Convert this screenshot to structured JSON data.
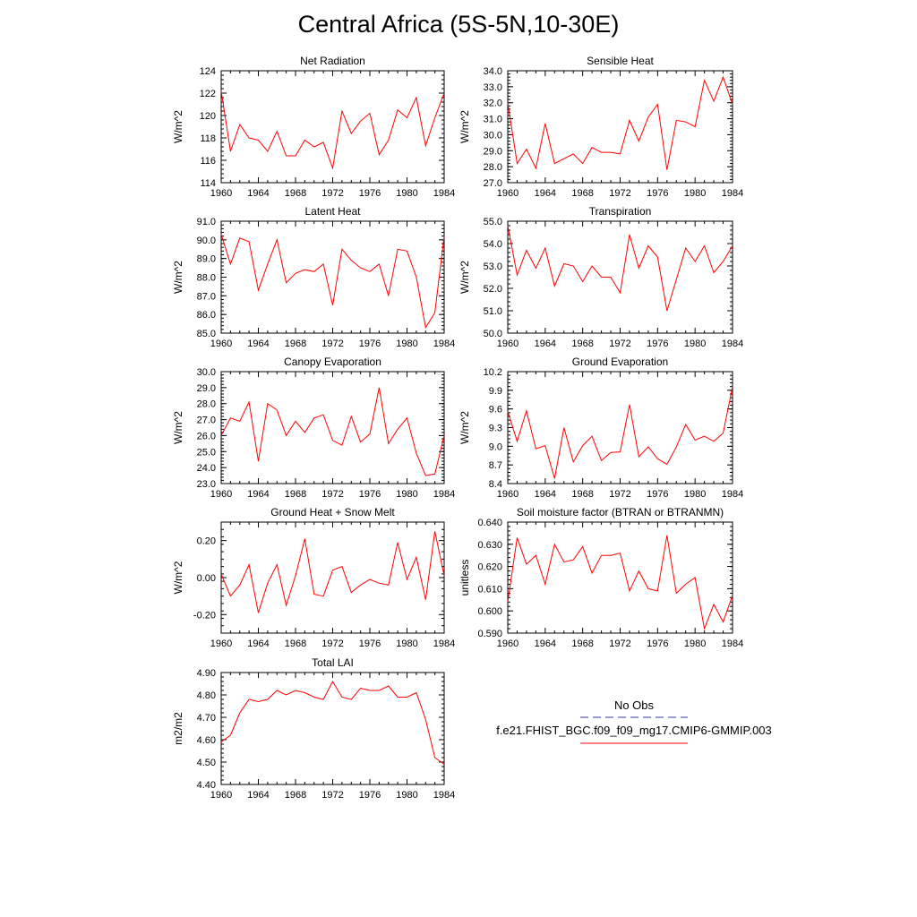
{
  "page_title": "Central Africa (5S-5N,10-30E)",
  "legend": {
    "obs_label": "No Obs",
    "model_label": "f.e21.FHIST_BGC.f09_f09_mg17.CMIP6-GMMIP.003",
    "obs_color": "#3333aa",
    "model_color": "#ff0000"
  },
  "chart_data": [
    {
      "type": "line",
      "title": "Net Radiation",
      "ylabel": "W/m^2",
      "xlim": [
        1960,
        1984
      ],
      "x_ticks": [
        "1960",
        "1964",
        "1968",
        "1972",
        "1976",
        "1980",
        "1984"
      ],
      "ylim": [
        114,
        124
      ],
      "y_ticks": [
        "114",
        "116",
        "118",
        "120",
        "122",
        "124"
      ],
      "x": [
        1960,
        1961,
        1962,
        1963,
        1964,
        1965,
        1966,
        1967,
        1968,
        1969,
        1970,
        1971,
        1972,
        1973,
        1974,
        1975,
        1976,
        1977,
        1978,
        1979,
        1980,
        1981,
        1982,
        1983,
        1984
      ],
      "series": [
        {
          "color": "#ff0000",
          "values": [
            122.2,
            116.8,
            119.2,
            118.0,
            117.8,
            116.8,
            118.6,
            116.4,
            116.4,
            117.8,
            117.2,
            117.6,
            115.3,
            120.4,
            118.4,
            119.5,
            120.2,
            116.5,
            117.8,
            120.5,
            119.8,
            121.6,
            117.3,
            119.8,
            122.0
          ]
        }
      ]
    },
    {
      "type": "line",
      "title": "Sensible Heat",
      "ylabel": "W/m^2",
      "xlim": [
        1960,
        1984
      ],
      "x_ticks": [
        "1960",
        "1964",
        "1968",
        "1972",
        "1976",
        "1980",
        "1984"
      ],
      "ylim": [
        27.0,
        34.0
      ],
      "y_ticks": [
        "27.0",
        "28.0",
        "29.0",
        "30.0",
        "31.0",
        "32.0",
        "33.0",
        "34.0"
      ],
      "x": [
        1960,
        1961,
        1962,
        1963,
        1964,
        1965,
        1966,
        1967,
        1968,
        1969,
        1970,
        1971,
        1972,
        1973,
        1974,
        1975,
        1976,
        1977,
        1978,
        1979,
        1980,
        1981,
        1982,
        1983,
        1984
      ],
      "series": [
        {
          "color": "#ff0000",
          "values": [
            32.0,
            28.2,
            29.1,
            27.9,
            30.7,
            28.2,
            28.5,
            28.8,
            28.2,
            29.2,
            28.9,
            28.9,
            28.8,
            30.9,
            29.6,
            31.1,
            31.9,
            27.8,
            30.9,
            30.8,
            30.5,
            33.4,
            32.1,
            33.6,
            31.9
          ]
        }
      ]
    },
    {
      "type": "line",
      "title": "Latent Heat",
      "ylabel": "W/m^2",
      "xlim": [
        1960,
        1984
      ],
      "x_ticks": [
        "1960",
        "1964",
        "1968",
        "1972",
        "1976",
        "1980",
        "1984"
      ],
      "ylim": [
        85.0,
        91.0
      ],
      "y_ticks": [
        "85.0",
        "86.0",
        "87.0",
        "88.0",
        "89.0",
        "90.0",
        "91.0"
      ],
      "x": [
        1960,
        1961,
        1962,
        1963,
        1964,
        1965,
        1966,
        1967,
        1968,
        1969,
        1970,
        1971,
        1972,
        1973,
        1974,
        1975,
        1976,
        1977,
        1978,
        1979,
        1980,
        1981,
        1982,
        1983,
        1984
      ],
      "series": [
        {
          "color": "#ff0000",
          "values": [
            90.3,
            88.7,
            90.1,
            89.9,
            87.3,
            88.7,
            90.0,
            87.7,
            88.2,
            88.4,
            88.3,
            88.7,
            86.5,
            89.5,
            88.9,
            88.5,
            88.3,
            88.7,
            87.0,
            89.5,
            89.4,
            88.0,
            85.3,
            86.1,
            90.2
          ]
        }
      ]
    },
    {
      "type": "line",
      "title": "Transpiration",
      "ylabel": "W/m^2",
      "xlim": [
        1960,
        1984
      ],
      "x_ticks": [
        "1960",
        "1964",
        "1968",
        "1972",
        "1976",
        "1980",
        "1984"
      ],
      "ylim": [
        50.0,
        55.0
      ],
      "y_ticks": [
        "50.0",
        "51.0",
        "52.0",
        "53.0",
        "54.0",
        "55.0"
      ],
      "x": [
        1960,
        1961,
        1962,
        1963,
        1964,
        1965,
        1966,
        1967,
        1968,
        1969,
        1970,
        1971,
        1972,
        1973,
        1974,
        1975,
        1976,
        1977,
        1978,
        1979,
        1980,
        1981,
        1982,
        1983,
        1984
      ],
      "series": [
        {
          "color": "#ff0000",
          "values": [
            54.8,
            52.6,
            53.7,
            52.9,
            53.8,
            52.1,
            53.1,
            53.0,
            52.3,
            53.0,
            52.5,
            52.5,
            51.8,
            54.4,
            52.9,
            53.9,
            53.4,
            51.0,
            52.4,
            53.8,
            53.2,
            53.9,
            52.7,
            53.2,
            53.9
          ]
        }
      ]
    },
    {
      "type": "line",
      "title": "Canopy Evaporation",
      "ylabel": "W/m^2",
      "xlim": [
        1960,
        1984
      ],
      "x_ticks": [
        "1960",
        "1964",
        "1968",
        "1972",
        "1976",
        "1980",
        "1984"
      ],
      "ylim": [
        23.0,
        30.0
      ],
      "y_ticks": [
        "23.0",
        "24.0",
        "25.0",
        "26.0",
        "27.0",
        "28.0",
        "29.0",
        "30.0"
      ],
      "x": [
        1960,
        1961,
        1962,
        1963,
        1964,
        1965,
        1966,
        1967,
        1968,
        1969,
        1970,
        1971,
        1972,
        1973,
        1974,
        1975,
        1976,
        1977,
        1978,
        1979,
        1980,
        1981,
        1982,
        1983,
        1984
      ],
      "series": [
        {
          "color": "#ff0000",
          "values": [
            26.0,
            27.1,
            26.9,
            28.1,
            24.4,
            28.0,
            27.6,
            26.0,
            26.9,
            26.2,
            27.1,
            27.3,
            25.7,
            25.4,
            27.2,
            25.6,
            26.1,
            29.0,
            25.5,
            26.4,
            27.1,
            24.9,
            23.5,
            23.6,
            26.0
          ]
        }
      ]
    },
    {
      "type": "line",
      "title": "Ground Evaporation",
      "ylabel": "W/m^2",
      "xlim": [
        1960,
        1984
      ],
      "x_ticks": [
        "1960",
        "1964",
        "1968",
        "1972",
        "1976",
        "1980",
        "1984"
      ],
      "ylim": [
        8.4,
        10.2
      ],
      "y_ticks": [
        "8.4",
        "8.7",
        "9.0",
        "9.3",
        "9.6",
        "9.9",
        "10.2"
      ],
      "x": [
        1960,
        1961,
        1962,
        1963,
        1964,
        1965,
        1966,
        1967,
        1968,
        1969,
        1970,
        1971,
        1972,
        1973,
        1974,
        1975,
        1976,
        1977,
        1978,
        1979,
        1980,
        1981,
        1982,
        1983,
        1984
      ],
      "series": [
        {
          "color": "#ff0000",
          "values": [
            9.56,
            9.08,
            9.57,
            8.96,
            9.01,
            8.48,
            9.3,
            8.75,
            9.01,
            9.16,
            8.77,
            8.9,
            8.91,
            9.67,
            8.83,
            8.99,
            8.8,
            8.71,
            8.99,
            9.35,
            9.1,
            9.16,
            9.08,
            9.21,
            9.96
          ]
        }
      ]
    },
    {
      "type": "line",
      "title": "Ground Heat + Snow Melt",
      "ylabel": "W/m^2",
      "xlim": [
        1960,
        1984
      ],
      "x_ticks": [
        "1960",
        "1964",
        "1968",
        "1972",
        "1976",
        "1980",
        "1984"
      ],
      "ylim": [
        -0.3,
        0.3
      ],
      "y_ticks": [
        "-0.20",
        "0.00",
        "0.20"
      ],
      "y_tick_values": [
        -0.2,
        0.0,
        0.2
      ],
      "x": [
        1960,
        1961,
        1962,
        1963,
        1964,
        1965,
        1966,
        1967,
        1968,
        1969,
        1970,
        1971,
        1972,
        1973,
        1974,
        1975,
        1976,
        1977,
        1978,
        1979,
        1980,
        1981,
        1982,
        1983,
        1984
      ],
      "series": [
        {
          "color": "#ff0000",
          "values": [
            0.02,
            -0.1,
            -0.04,
            0.07,
            -0.19,
            -0.03,
            0.07,
            -0.15,
            0.01,
            0.21,
            -0.09,
            -0.1,
            0.04,
            0.06,
            -0.08,
            -0.04,
            -0.01,
            -0.03,
            -0.04,
            0.19,
            -0.01,
            0.11,
            -0.12,
            0.25,
            0.01
          ]
        }
      ]
    },
    {
      "type": "line",
      "title": "Soil moisture factor (BTRAN or BTRANMN)",
      "ylabel": "unitless",
      "xlim": [
        1960,
        1984
      ],
      "x_ticks": [
        "1960",
        "1964",
        "1968",
        "1972",
        "1976",
        "1980",
        "1984"
      ],
      "ylim": [
        0.59,
        0.64
      ],
      "y_ticks": [
        "0.590",
        "0.600",
        "0.610",
        "0.620",
        "0.630",
        "0.640"
      ],
      "x": [
        1960,
        1961,
        1962,
        1963,
        1964,
        1965,
        1966,
        1967,
        1968,
        1969,
        1970,
        1971,
        1972,
        1973,
        1974,
        1975,
        1976,
        1977,
        1978,
        1979,
        1980,
        1981,
        1982,
        1983,
        1984
      ],
      "series": [
        {
          "color": "#ff0000",
          "values": [
            0.604,
            0.633,
            0.621,
            0.625,
            0.612,
            0.63,
            0.622,
            0.623,
            0.629,
            0.617,
            0.625,
            0.625,
            0.626,
            0.609,
            0.618,
            0.61,
            0.609,
            0.634,
            0.608,
            0.612,
            0.615,
            0.592,
            0.603,
            0.595,
            0.607
          ]
        }
      ]
    },
    {
      "type": "line",
      "title": "Total LAI",
      "ylabel": "m2/m2",
      "xlim": [
        1960,
        1984
      ],
      "x_ticks": [
        "1960",
        "1964",
        "1968",
        "1972",
        "1976",
        "1980",
        "1984"
      ],
      "ylim": [
        4.4,
        4.9
      ],
      "y_ticks": [
        "4.40",
        "4.50",
        "4.60",
        "4.70",
        "4.80",
        "4.90"
      ],
      "x": [
        1960,
        1961,
        1962,
        1963,
        1964,
        1965,
        1966,
        1967,
        1968,
        1969,
        1970,
        1971,
        1972,
        1973,
        1974,
        1975,
        1976,
        1977,
        1978,
        1979,
        1980,
        1981,
        1982,
        1983,
        1984
      ],
      "series": [
        {
          "color": "#ff0000",
          "values": [
            4.59,
            4.62,
            4.72,
            4.78,
            4.77,
            4.78,
            4.82,
            4.8,
            4.82,
            4.81,
            4.79,
            4.78,
            4.86,
            4.79,
            4.78,
            4.83,
            4.82,
            4.82,
            4.84,
            4.79,
            4.79,
            4.81,
            4.69,
            4.52,
            4.49
          ]
        }
      ]
    }
  ]
}
